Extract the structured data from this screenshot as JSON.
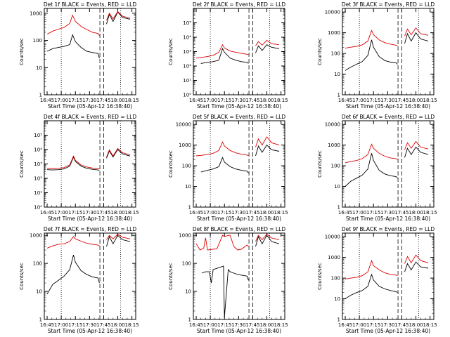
{
  "colors": {
    "events": "#000000",
    "lld": "#dd0000",
    "axes": "#000000",
    "background": "#ffffff"
  },
  "x_ticks": [
    "16:45",
    "17:00",
    "17:15",
    "17:30",
    "17:45",
    "18:00",
    "18:15"
  ],
  "x_tick_minutes": [
    0,
    15,
    30,
    45,
    60,
    75,
    90
  ],
  "x_range_minutes": [
    -3,
    94
  ],
  "xlabel": "Start Time (05-Apr-12 16:38:40)",
  "ylabel": "Counts/sec",
  "chart_data": [
    {
      "type": "line",
      "title": "Det 1f BLACK = Events, RED = LLD",
      "ylim": [
        1,
        1500
      ],
      "yscale": "log",
      "yticks": [
        "1",
        "10",
        "100",
        "1000"
      ],
      "ytick_values": [
        1,
        10,
        100,
        1000
      ],
      "markers": [
        15,
        56,
        60,
        78
      ],
      "series": [
        {
          "name": "BLACK = Events",
          "x": [
            0,
            6,
            12,
            18,
            24,
            27,
            30,
            36,
            42,
            48,
            54,
            55.5,
            58,
            63,
            66,
            70,
            75,
            80,
            88
          ],
          "y": [
            40,
            50,
            55,
            60,
            70,
            160,
            90,
            55,
            40,
            36,
            33,
            22,
            null,
            400,
            900,
            500,
            1100,
            700,
            600
          ]
        },
        {
          "name": "RED = LLD",
          "x": [
            0,
            6,
            12,
            18,
            24,
            27,
            30,
            36,
            42,
            48,
            54,
            55.5,
            58,
            63,
            66,
            70,
            75,
            80,
            88
          ],
          "y": [
            170,
            220,
            260,
            300,
            420,
            850,
            500,
            330,
            250,
            200,
            180,
            150,
            null,
            550,
            1000,
            620,
            1150,
            780,
            650
          ]
        }
      ]
    },
    {
      "type": "line",
      "title": "Det 2f BLACK = Events, RED = LLD",
      "ylim": [
        1,
        1000000
      ],
      "yscale": "log",
      "yticks": [
        "10⁰",
        "10¹",
        "10²",
        "10³",
        "10⁴",
        "10⁵"
      ],
      "ytick_values": [
        1,
        10,
        100,
        1000,
        10000,
        100000
      ],
      "markers": [
        15,
        56,
        60,
        78
      ],
      "series": [
        {
          "name": "BLACK = Events",
          "x": [
            5,
            12,
            18,
            24,
            28,
            30,
            36,
            42,
            48,
            54,
            55.5,
            58,
            63,
            66,
            70,
            75,
            80,
            88
          ],
          "y": [
            150,
            180,
            200,
            250,
            1600,
            900,
            350,
            250,
            200,
            180,
            150,
            null,
            800,
            2500,
            1200,
            3000,
            2000,
            1600
          ]
        },
        {
          "name": "RED = LLD",
          "x": [
            0,
            6,
            12,
            18,
            24,
            28,
            30,
            36,
            42,
            48,
            54,
            55.5,
            58,
            63,
            66,
            70,
            75,
            80,
            88
          ],
          "y": [
            350,
            400,
            450,
            550,
            900,
            3000,
            1800,
            1100,
            900,
            750,
            650,
            600,
            null,
            2500,
            5000,
            2800,
            6000,
            3500,
            3000
          ]
        }
      ]
    },
    {
      "type": "line",
      "title": "Det 3f BLACK = Events, RED = LLD",
      "ylim": [
        1,
        15000
      ],
      "yscale": "log",
      "yticks": [
        "1",
        "10",
        "100",
        "1000",
        "10000"
      ],
      "ytick_values": [
        1,
        10,
        100,
        1000,
        10000
      ],
      "markers": [
        15,
        56,
        60,
        78
      ],
      "series": [
        {
          "name": "BLACK = Events",
          "x": [
            0,
            6,
            12,
            18,
            24,
            28,
            30,
            36,
            42,
            48,
            54,
            55.5,
            58,
            63,
            66,
            70,
            75,
            80,
            88
          ],
          "y": [
            15,
            22,
            30,
            40,
            80,
            450,
            200,
            70,
            45,
            38,
            35,
            30,
            null,
            300,
            900,
            400,
            1000,
            500,
            400
          ]
        },
        {
          "name": "RED = LLD",
          "x": [
            0,
            6,
            12,
            18,
            24,
            28,
            30,
            36,
            42,
            48,
            54,
            55.5,
            58,
            63,
            66,
            70,
            75,
            80,
            88
          ],
          "y": [
            180,
            200,
            220,
            260,
            400,
            1300,
            800,
            450,
            330,
            280,
            250,
            230,
            null,
            700,
            1500,
            800,
            1700,
            900,
            750
          ]
        }
      ]
    },
    {
      "type": "line",
      "title": "Det 4f BLACK = Events, RED = LLD",
      "ylim": [
        1,
        1000000
      ],
      "yscale": "log",
      "yticks": [
        "10⁰",
        "10¹",
        "10²",
        "10³",
        "10⁴",
        "10⁵"
      ],
      "ytick_values": [
        1,
        10,
        100,
        1000,
        10000,
        100000
      ],
      "markers": [
        15,
        56,
        60,
        78
      ],
      "series": [
        {
          "name": "BLACK = Events",
          "x": [
            0,
            6,
            12,
            18,
            24,
            28,
            30,
            36,
            42,
            48,
            54,
            55.5,
            58,
            63,
            66,
            70,
            75,
            80,
            88
          ],
          "y": [
            400,
            380,
            400,
            450,
            700,
            3000,
            1500,
            700,
            500,
            420,
            380,
            350,
            null,
            2500,
            8000,
            3000,
            10000,
            5000,
            3500
          ]
        },
        {
          "name": "RED = LLD",
          "x": [
            0,
            6,
            12,
            18,
            24,
            28,
            30,
            36,
            42,
            48,
            54,
            55.5,
            58,
            63,
            66,
            70,
            75,
            80,
            88
          ],
          "y": [
            500,
            480,
            500,
            550,
            850,
            3500,
            1800,
            850,
            620,
            520,
            480,
            450,
            null,
            3000,
            9500,
            3600,
            12000,
            6000,
            4200
          ]
        }
      ]
    },
    {
      "type": "line",
      "title": "Det 5f BLACK = Events, RED = LLD",
      "ylim": [
        1,
        15000
      ],
      "yscale": "log",
      "yticks": [
        "1",
        "10",
        "100",
        "1000",
        "10000"
      ],
      "ytick_values": [
        1,
        10,
        100,
        1000,
        10000
      ],
      "markers": [
        15,
        56,
        60,
        78
      ],
      "series": [
        {
          "name": "BLACK = Events",
          "x": [
            5,
            12,
            18,
            24,
            28,
            30,
            36,
            42,
            48,
            54,
            55.5,
            58,
            63,
            66,
            70,
            75,
            80,
            88
          ],
          "y": [
            50,
            60,
            70,
            90,
            250,
            150,
            90,
            70,
            60,
            55,
            45,
            null,
            300,
            900,
            450,
            1000,
            600,
            500
          ]
        },
        {
          "name": "RED = LLD",
          "x": [
            0,
            6,
            12,
            18,
            24,
            28,
            30,
            36,
            42,
            48,
            54,
            55.5,
            58,
            63,
            66,
            70,
            75,
            80,
            88
          ],
          "y": [
            300,
            320,
            350,
            400,
            550,
            1400,
            900,
            550,
            420,
            360,
            330,
            300,
            null,
            800,
            2000,
            1000,
            2500,
            1300,
            1000
          ]
        }
      ]
    },
    {
      "type": "line",
      "title": "Det 6f BLACK = Events, RED = LLD",
      "ylim": [
        1,
        15000
      ],
      "yscale": "log",
      "yticks": [
        "1",
        "10",
        "100",
        "1000",
        "10000"
      ],
      "ytick_values": [
        1,
        10,
        100,
        1000,
        10000
      ],
      "markers": [
        15,
        56,
        60,
        78
      ],
      "series": [
        {
          "name": "BLACK = Events",
          "x": [
            0,
            6,
            12,
            18,
            24,
            28,
            30,
            36,
            42,
            48,
            54,
            55.5,
            58,
            63,
            66,
            70,
            75,
            80,
            88
          ],
          "y": [
            10,
            18,
            25,
            35,
            70,
            400,
            180,
            60,
            40,
            33,
            30,
            25,
            null,
            250,
            700,
            350,
            800,
            450,
            350
          ]
        },
        {
          "name": "RED = LLD",
          "x": [
            0,
            6,
            12,
            18,
            24,
            28,
            30,
            36,
            42,
            48,
            54,
            55.5,
            58,
            63,
            66,
            70,
            75,
            80,
            88
          ],
          "y": [
            140,
            160,
            180,
            220,
            350,
            1100,
            700,
            400,
            290,
            240,
            220,
            200,
            null,
            600,
            1300,
            700,
            1500,
            800,
            650
          ]
        }
      ]
    },
    {
      "type": "line",
      "title": "Det 7f BLACK = Events, RED = LLD",
      "ylim": [
        1,
        1200
      ],
      "yscale": "log",
      "yticks": [
        "1",
        "10",
        "100",
        "1000"
      ],
      "ytick_values": [
        1,
        10,
        100,
        1000
      ],
      "markers": [
        15,
        56,
        60,
        78
      ],
      "series": [
        {
          "name": "BLACK = Events",
          "x": [
            0,
            6,
            12,
            18,
            24,
            28,
            30,
            36,
            42,
            48,
            54,
            55.5,
            58,
            63,
            66,
            70,
            75,
            80,
            88
          ],
          "y": [
            8,
            18,
            25,
            35,
            60,
            200,
            110,
            55,
            40,
            33,
            30,
            20,
            null,
            400,
            900,
            500,
            1000,
            700,
            600
          ]
        },
        {
          "name": "RED = LLD",
          "x": [
            0,
            6,
            12,
            18,
            24,
            28,
            30,
            36,
            42,
            48,
            54,
            55.5,
            58,
            63,
            66,
            70,
            75,
            80,
            88
          ],
          "y": [
            350,
            420,
            480,
            500,
            600,
            900,
            750,
            620,
            520,
            480,
            450,
            420,
            null,
            700,
            1000,
            750,
            1100,
            850,
            750
          ]
        }
      ]
    },
    {
      "type": "line",
      "title": "Det 8f BLACK = Events, RED = LLD",
      "ylim": [
        1,
        1200
      ],
      "yscale": "log",
      "yticks": [
        "1",
        "10",
        "100",
        "1000"
      ],
      "ytick_values": [
        1,
        10,
        100,
        1000
      ],
      "markers": [
        15,
        56,
        60,
        78
      ],
      "series": [
        {
          "name": "BLACK = Events",
          "x": [
            6,
            10,
            14,
            16,
            18,
            24,
            29,
            30,
            34,
            36,
            40,
            44,
            48,
            54,
            55.5,
            58,
            63,
            66,
            70,
            75,
            80,
            88
          ],
          "y": [
            45,
            50,
            50,
            20,
            60,
            70,
            80,
            1.2,
            60,
            50,
            45,
            40,
            38,
            35,
            25,
            null,
            400,
            900,
            500,
            1000,
            600,
            500
          ]
        },
        {
          "name": "RED = LLD",
          "x": [
            0,
            4,
            8,
            10,
            12,
            18,
            22,
            26,
            28,
            30,
            34,
            36,
            40,
            44,
            48,
            54,
            55.5,
            58,
            63,
            66,
            70,
            75,
            80,
            88
          ],
          "y": [
            500,
            300,
            350,
            800,
            300,
            320,
            330,
            700,
            1000,
            900,
            1000,
            1000,
            400,
            300,
            320,
            450,
            400,
            null,
            600,
            1000,
            700,
            1100,
            800,
            700
          ]
        }
      ]
    },
    {
      "type": "line",
      "title": "Det 9f BLACK = Events, RED = LLD",
      "ylim": [
        1,
        15000
      ],
      "yscale": "log",
      "yticks": [
        "1",
        "10",
        "100",
        "1000",
        "10000"
      ],
      "ytick_values": [
        1,
        10,
        100,
        1000,
        10000
      ],
      "markers": [
        15,
        56,
        60,
        78
      ],
      "series": [
        {
          "name": "BLACK = Events",
          "x": [
            0,
            6,
            12,
            18,
            24,
            28,
            30,
            36,
            42,
            48,
            54,
            55.5,
            58,
            63,
            66,
            70,
            75,
            80,
            88
          ],
          "y": [
            10,
            15,
            20,
            25,
            40,
            150,
            80,
            40,
            30,
            25,
            22,
            20,
            null,
            200,
            500,
            250,
            600,
            350,
            300
          ]
        },
        {
          "name": "RED = LLD",
          "x": [
            0,
            6,
            12,
            18,
            24,
            28,
            30,
            36,
            42,
            48,
            54,
            55.5,
            58,
            63,
            66,
            70,
            75,
            80,
            88
          ],
          "y": [
            90,
            100,
            110,
            130,
            200,
            700,
            400,
            250,
            180,
            150,
            140,
            130,
            null,
            500,
            1100,
            550,
            1300,
            700,
            550
          ]
        }
      ]
    }
  ]
}
